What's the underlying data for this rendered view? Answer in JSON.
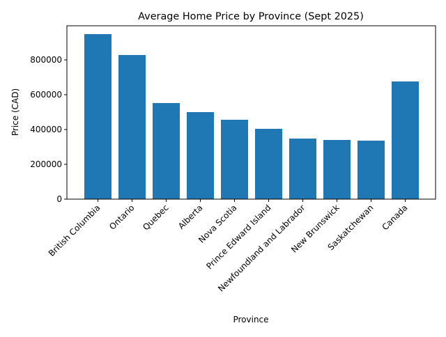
{
  "chart_data": {
    "type": "bar",
    "title": "Average Home Price by Province (Sept 2025)",
    "xlabel": "Province",
    "ylabel": "Price (CAD)",
    "categories": [
      "British Columbia",
      "Ontario",
      "Quebec",
      "Alberta",
      "Nova Scotia",
      "Prince Edward Island",
      "Newfoundland and Labrador",
      "New Brunswick",
      "Saskatchewan",
      "Canada"
    ],
    "values": [
      948000,
      828000,
      552000,
      500000,
      456000,
      404000,
      348000,
      340000,
      336000,
      676000
    ],
    "yticks": [
      0,
      200000,
      400000,
      600000,
      800000
    ],
    "ylim": [
      0,
      996000
    ],
    "grid": false,
    "legend": null,
    "bar_color": "#1f77b4"
  }
}
